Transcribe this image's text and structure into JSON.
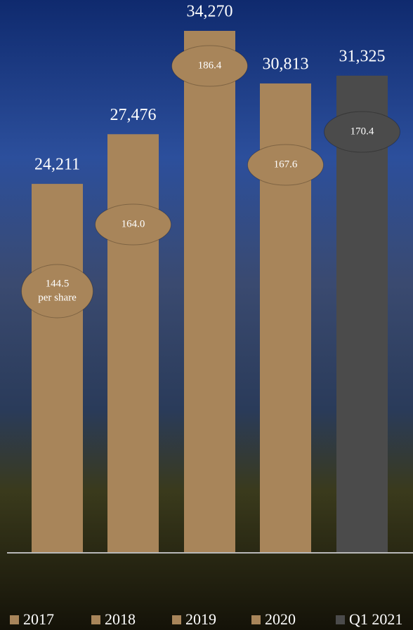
{
  "chart_data": {
    "type": "bar",
    "categories": [
      "2017",
      "2018",
      "2019",
      "2020",
      "Q1 2021"
    ],
    "values": [
      24211,
      27476,
      34270,
      30813,
      31325
    ],
    "value_labels": [
      "24,211",
      "27,476",
      "34,270",
      "30,813",
      "31,325"
    ],
    "colors": [
      "#a8855a",
      "#a8855a",
      "#a8855a",
      "#a8855a",
      "#4b4b4b"
    ],
    "per_share": {
      "values": [
        144.5,
        164.0,
        186.4,
        167.6,
        170.4
      ],
      "value_labels": [
        "144.5",
        "164.0",
        "186.4",
        "167.6",
        "170.4"
      ],
      "unit": "per share",
      "colors": [
        "#a8855a",
        "#a8855a",
        "#a8855a",
        "#a8855a",
        "#4b4b4b"
      ]
    }
  }
}
